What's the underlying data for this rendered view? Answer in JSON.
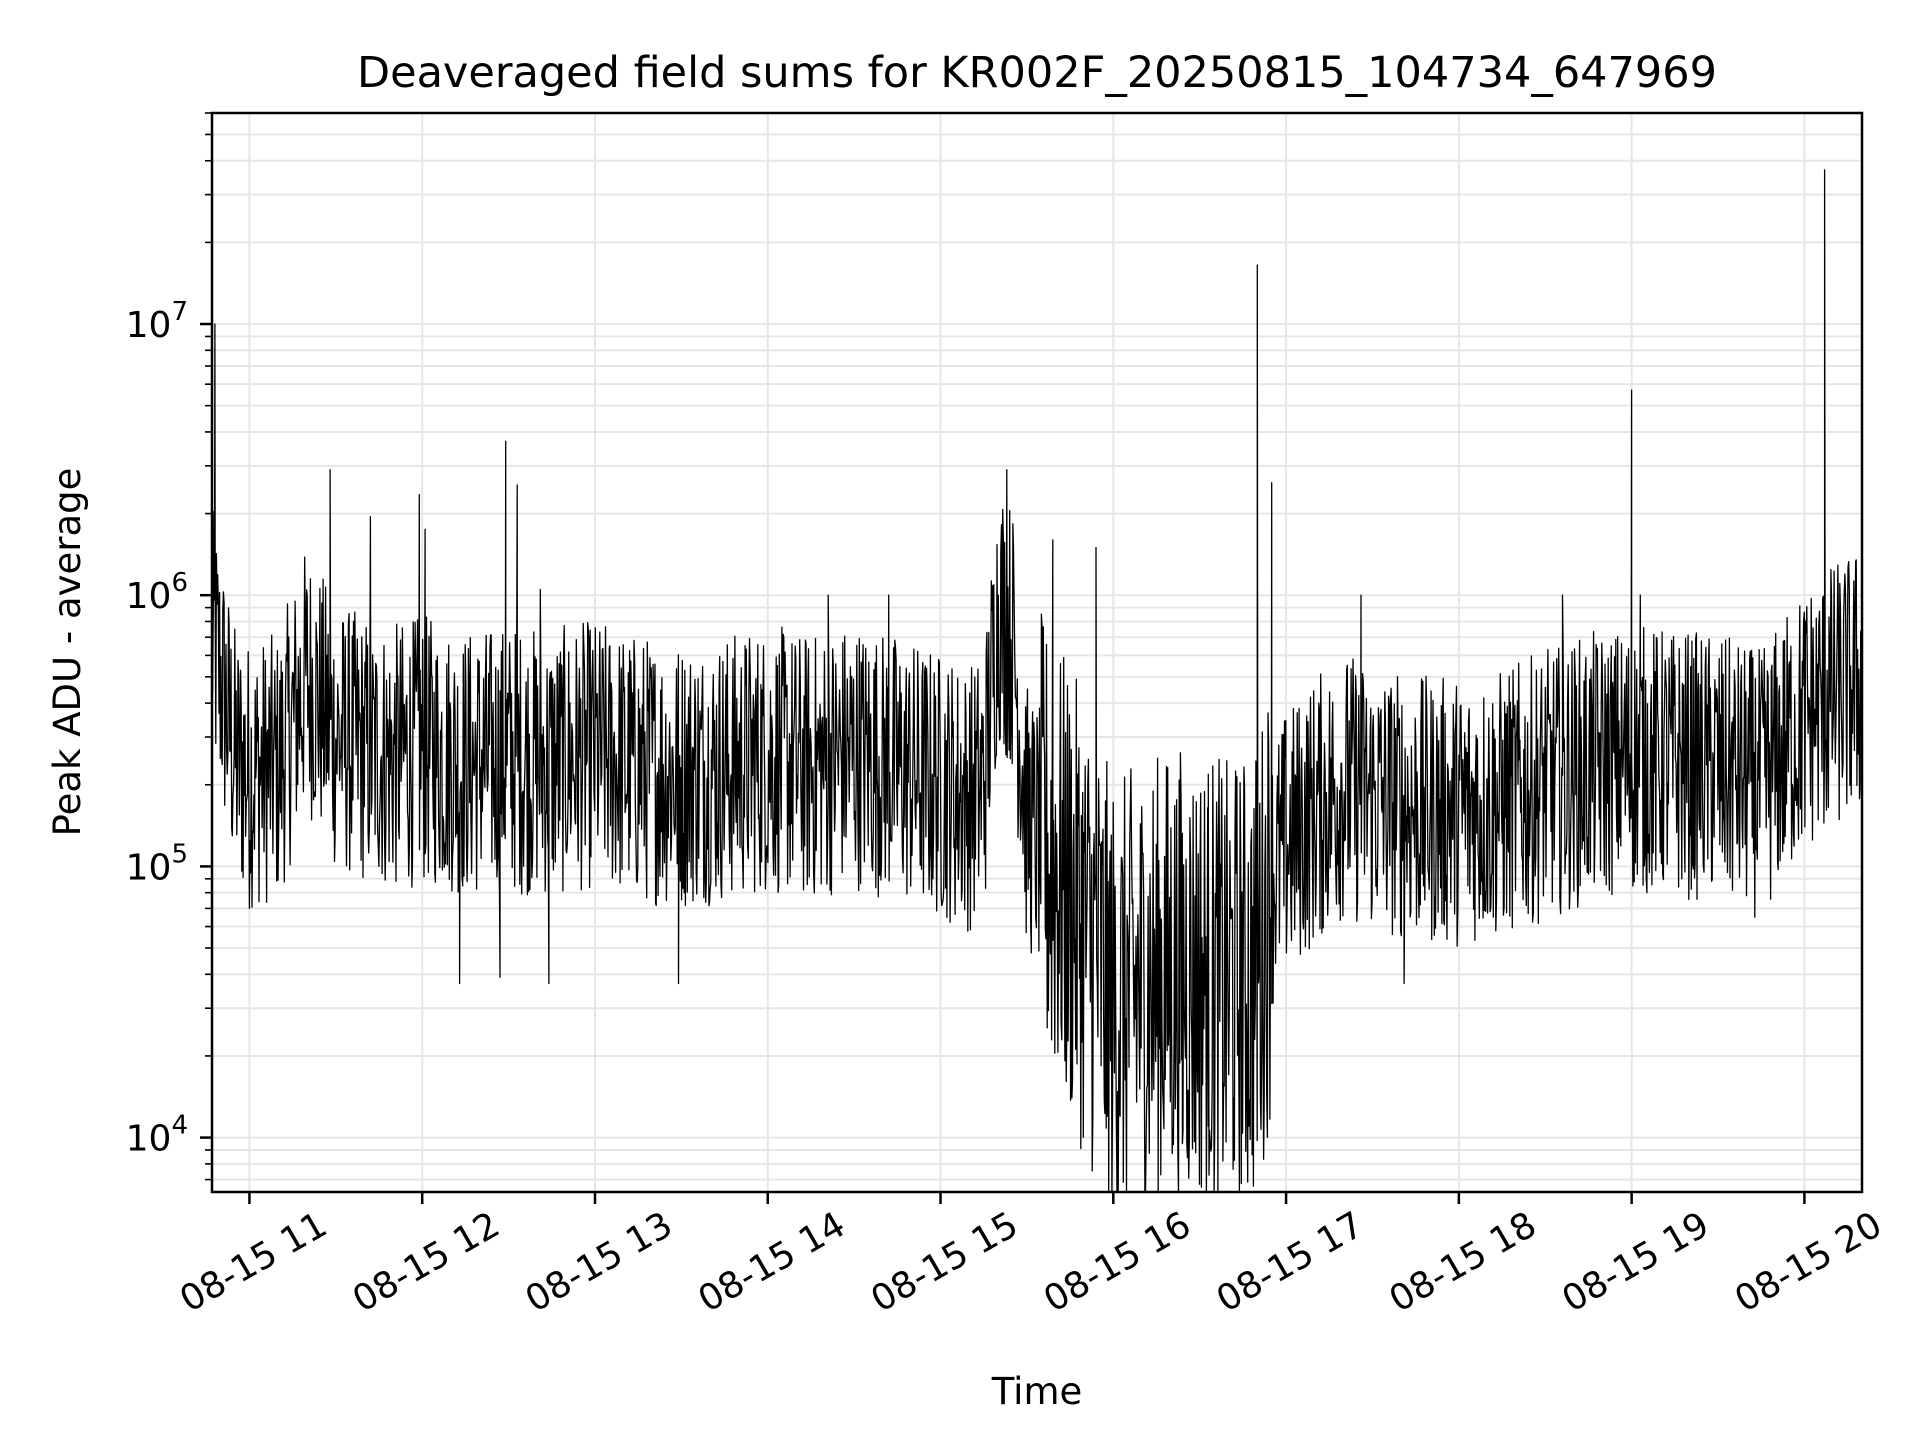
{
  "chart_data": {
    "type": "line",
    "title": "Deaveraged field sums for KR002F_20250815_104734_647969",
    "xlabel": "Time",
    "ylabel": "Peak ADU - average",
    "yscale": "log",
    "ylim": [
      6300,
      60000000
    ],
    "xlim": [
      "2025-08-15 10:47",
      "2025-08-15 20:20"
    ],
    "grid": true,
    "x_ticks": [
      "08-15 11",
      "08-15 12",
      "08-15 13",
      "08-15 14",
      "08-15 15",
      "08-15 16",
      "08-15 17",
      "08-15 18",
      "08-15 19",
      "08-15 20"
    ],
    "y_ticks": [
      {
        "value": 10000,
        "base": "10",
        "exp": "4"
      },
      {
        "value": 100000,
        "base": "10",
        "exp": "5"
      },
      {
        "value": 1000000,
        "base": "10",
        "exp": "6"
      },
      {
        "value": 10000000,
        "base": "10",
        "exp": "7"
      }
    ],
    "series": [
      {
        "color": "#000000",
        "x": [
          "10:47",
          "10:50",
          "10:55",
          "11:00",
          "11:10",
          "11:20",
          "11:30",
          "11:40",
          "11:50",
          "12:00",
          "12:15",
          "12:30",
          "12:45",
          "13:00",
          "13:15",
          "13:30",
          "13:45",
          "14:00",
          "14:15",
          "14:30",
          "14:45",
          "15:00",
          "15:10",
          "15:15",
          "15:20",
          "15:25",
          "15:30",
          "15:40",
          "15:50",
          "16:00",
          "16:10",
          "16:20",
          "16:30",
          "16:40",
          "16:50",
          "16:55",
          "17:00",
          "17:10",
          "17:20",
          "17:30",
          "17:45",
          "18:00",
          "18:15",
          "18:30",
          "18:45",
          "19:00",
          "19:15",
          "19:30",
          "19:45",
          "20:00",
          "20:10",
          "20:20"
        ],
        "y": [
          700000,
          500000,
          250000,
          220000,
          230000,
          500000,
          300000,
          270000,
          250000,
          270000,
          240000,
          250000,
          240000,
          260000,
          230000,
          220000,
          230000,
          250000,
          230000,
          260000,
          230000,
          200000,
          180000,
          200000,
          900000,
          700000,
          150000,
          100000,
          60000,
          30000,
          35000,
          40000,
          40000,
          35000,
          40000,
          90000,
          120000,
          160000,
          200000,
          180000,
          160000,
          160000,
          170000,
          200000,
          230000,
          250000,
          240000,
          230000,
          200000,
          350000,
          420000,
          480000
        ],
        "spikes": [
          {
            "x": "10:48",
            "y": 10000000
          },
          {
            "x": "11:28",
            "y": 2900000
          },
          {
            "x": "11:42",
            "y": 1950000
          },
          {
            "x": "11:59",
            "y": 2350000
          },
          {
            "x": "12:01",
            "y": 1750000
          },
          {
            "x": "12:29",
            "y": 3700000
          },
          {
            "x": "12:33",
            "y": 2550000
          },
          {
            "x": "12:41",
            "y": 1050000
          },
          {
            "x": "14:21",
            "y": 1000000
          },
          {
            "x": "14:42",
            "y": 1000000
          },
          {
            "x": "15:23",
            "y": 2900000
          },
          {
            "x": "15:39",
            "y": 1600000
          },
          {
            "x": "15:54",
            "y": 1500000
          },
          {
            "x": "16:50",
            "y": 16500000
          },
          {
            "x": "16:55",
            "y": 2600000
          },
          {
            "x": "17:26",
            "y": 1000000
          },
          {
            "x": "18:36",
            "y": 1000000
          },
          {
            "x": "19:00",
            "y": 5700000
          },
          {
            "x": "19:03",
            "y": 1000000
          },
          {
            "x": "20:07",
            "y": 37000000
          },
          {
            "x": "20:18",
            "y": 1350000
          }
        ],
        "dips": [
          {
            "x": "11:00",
            "y": 70000
          },
          {
            "x": "12:13",
            "y": 37000
          },
          {
            "x": "12:27",
            "y": 39000
          },
          {
            "x": "12:44",
            "y": 37000
          },
          {
            "x": "13:29",
            "y": 37000
          },
          {
            "x": "15:58",
            "y": 12000
          },
          {
            "x": "16:24",
            "y": 9500
          },
          {
            "x": "16:33",
            "y": 11000
          },
          {
            "x": "16:47",
            "y": 11000
          },
          {
            "x": "17:41",
            "y": 37000
          }
        ]
      }
    ]
  }
}
